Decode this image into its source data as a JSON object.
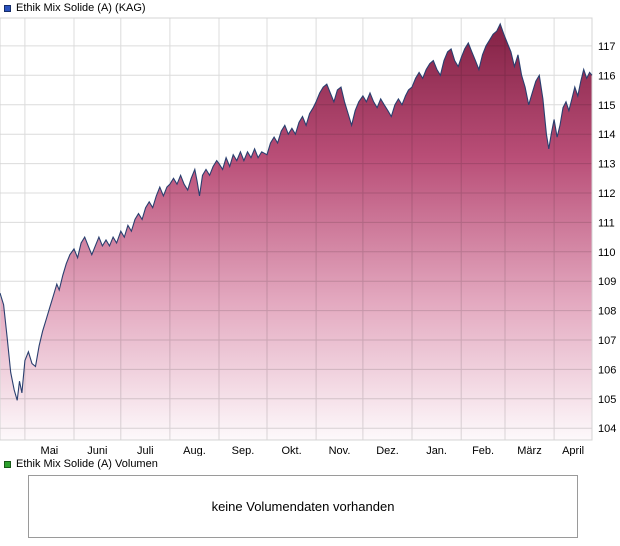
{
  "price_chart": {
    "legend_label": "Ethik Mix Solide (A) (KAG)",
    "legend_color": "#2a52be"
  },
  "volume_section": {
    "legend_label": "Ethik Mix Solide (A) Volumen",
    "legend_color": "#2ca02c",
    "empty_message": "keine Volumendaten vorhanden"
  },
  "chart_data": {
    "type": "area",
    "title": "Ethik Mix Solide (A) (KAG)",
    "xlabel": "",
    "ylabel": "",
    "y_axis_side": "right",
    "grid": true,
    "ylim": [
      103.6,
      117.95
    ],
    "y_ticks": [
      104,
      105,
      106,
      107,
      108,
      109,
      110,
      111,
      112,
      113,
      114,
      115,
      116,
      117
    ],
    "x_tick_labels": [
      "Mai",
      "Juni",
      "Juli",
      "Aug.",
      "Sep.",
      "Okt.",
      "Nov.",
      "Dez.",
      "Jan.",
      "Feb.",
      "März",
      "April"
    ],
    "x_month_boundaries": [
      0.042,
      0.125,
      0.204,
      0.287,
      0.37,
      0.451,
      0.534,
      0.613,
      0.696,
      0.779,
      0.853,
      0.936
    ],
    "line_color": "#2a3f6f",
    "fill_gradient": [
      "#801f42",
      "#b94e77",
      "#e3a8bf",
      "#fdf9fb"
    ],
    "series": [
      {
        "name": "Ethik Mix Solide (A) (KAG)",
        "x_unit": "fraction of plotted time range (ca. Mitte April bis Ende April Folgejahr)",
        "points": [
          [
            0.0,
            108.6
          ],
          [
            0.006,
            108.2
          ],
          [
            0.012,
            107.1
          ],
          [
            0.018,
            105.9
          ],
          [
            0.024,
            105.3
          ],
          [
            0.029,
            104.95
          ],
          [
            0.033,
            105.6
          ],
          [
            0.037,
            105.2
          ],
          [
            0.042,
            106.3
          ],
          [
            0.048,
            106.6
          ],
          [
            0.054,
            106.2
          ],
          [
            0.06,
            106.1
          ],
          [
            0.066,
            106.8
          ],
          [
            0.072,
            107.3
          ],
          [
            0.078,
            107.7
          ],
          [
            0.084,
            108.1
          ],
          [
            0.09,
            108.5
          ],
          [
            0.096,
            108.9
          ],
          [
            0.1,
            108.7
          ],
          [
            0.106,
            109.2
          ],
          [
            0.112,
            109.6
          ],
          [
            0.118,
            109.9
          ],
          [
            0.125,
            110.1
          ],
          [
            0.131,
            109.8
          ],
          [
            0.137,
            110.3
          ],
          [
            0.143,
            110.5
          ],
          [
            0.149,
            110.2
          ],
          [
            0.155,
            109.9
          ],
          [
            0.161,
            110.2
          ],
          [
            0.167,
            110.5
          ],
          [
            0.173,
            110.2
          ],
          [
            0.179,
            110.4
          ],
          [
            0.185,
            110.2
          ],
          [
            0.191,
            110.5
          ],
          [
            0.197,
            110.3
          ],
          [
            0.204,
            110.7
          ],
          [
            0.21,
            110.5
          ],
          [
            0.216,
            110.9
          ],
          [
            0.222,
            110.7
          ],
          [
            0.228,
            111.1
          ],
          [
            0.234,
            111.3
          ],
          [
            0.24,
            111.1
          ],
          [
            0.246,
            111.5
          ],
          [
            0.252,
            111.7
          ],
          [
            0.258,
            111.5
          ],
          [
            0.264,
            111.9
          ],
          [
            0.27,
            112.2
          ],
          [
            0.276,
            111.9
          ],
          [
            0.282,
            112.2
          ],
          [
            0.287,
            112.3
          ],
          [
            0.293,
            112.5
          ],
          [
            0.299,
            112.3
          ],
          [
            0.305,
            112.6
          ],
          [
            0.311,
            112.3
          ],
          [
            0.317,
            112.1
          ],
          [
            0.323,
            112.5
          ],
          [
            0.329,
            112.8
          ],
          [
            0.333,
            112.4
          ],
          [
            0.337,
            111.9
          ],
          [
            0.342,
            112.6
          ],
          [
            0.348,
            112.8
          ],
          [
            0.354,
            112.6
          ],
          [
            0.36,
            112.9
          ],
          [
            0.366,
            113.1
          ],
          [
            0.37,
            113.0
          ],
          [
            0.376,
            112.8
          ],
          [
            0.382,
            113.2
          ],
          [
            0.388,
            112.9
          ],
          [
            0.394,
            113.3
          ],
          [
            0.4,
            113.1
          ],
          [
            0.406,
            113.4
          ],
          [
            0.412,
            113.1
          ],
          [
            0.418,
            113.4
          ],
          [
            0.424,
            113.2
          ],
          [
            0.43,
            113.5
          ],
          [
            0.436,
            113.2
          ],
          [
            0.442,
            113.4
          ],
          [
            0.451,
            113.3
          ],
          [
            0.457,
            113.7
          ],
          [
            0.463,
            113.9
          ],
          [
            0.469,
            113.7
          ],
          [
            0.475,
            114.1
          ],
          [
            0.481,
            114.3
          ],
          [
            0.487,
            114.0
          ],
          [
            0.493,
            114.2
          ],
          [
            0.499,
            114.0
          ],
          [
            0.505,
            114.4
          ],
          [
            0.511,
            114.6
          ],
          [
            0.517,
            114.3
          ],
          [
            0.523,
            114.7
          ],
          [
            0.529,
            114.9
          ],
          [
            0.534,
            115.1
          ],
          [
            0.54,
            115.4
          ],
          [
            0.546,
            115.6
          ],
          [
            0.552,
            115.7
          ],
          [
            0.558,
            115.4
          ],
          [
            0.564,
            115.1
          ],
          [
            0.57,
            115.5
          ],
          [
            0.576,
            115.6
          ],
          [
            0.582,
            115.1
          ],
          [
            0.588,
            114.7
          ],
          [
            0.594,
            114.3
          ],
          [
            0.6,
            114.8
          ],
          [
            0.606,
            115.1
          ],
          [
            0.613,
            115.3
          ],
          [
            0.619,
            115.1
          ],
          [
            0.625,
            115.4
          ],
          [
            0.631,
            115.1
          ],
          [
            0.637,
            114.9
          ],
          [
            0.643,
            115.2
          ],
          [
            0.649,
            115.0
          ],
          [
            0.655,
            114.8
          ],
          [
            0.661,
            114.6
          ],
          [
            0.667,
            115.0
          ],
          [
            0.673,
            115.2
          ],
          [
            0.679,
            115.0
          ],
          [
            0.685,
            115.3
          ],
          [
            0.69,
            115.5
          ],
          [
            0.696,
            115.6
          ],
          [
            0.702,
            115.9
          ],
          [
            0.708,
            116.1
          ],
          [
            0.714,
            115.9
          ],
          [
            0.72,
            116.2
          ],
          [
            0.726,
            116.4
          ],
          [
            0.732,
            116.5
          ],
          [
            0.738,
            116.2
          ],
          [
            0.744,
            116.0
          ],
          [
            0.75,
            116.5
          ],
          [
            0.756,
            116.8
          ],
          [
            0.762,
            116.9
          ],
          [
            0.768,
            116.5
          ],
          [
            0.774,
            116.3
          ],
          [
            0.779,
            116.6
          ],
          [
            0.785,
            116.9
          ],
          [
            0.791,
            117.1
          ],
          [
            0.797,
            116.8
          ],
          [
            0.803,
            116.5
          ],
          [
            0.809,
            116.2
          ],
          [
            0.815,
            116.7
          ],
          [
            0.821,
            117.0
          ],
          [
            0.827,
            117.2
          ],
          [
            0.833,
            117.4
          ],
          [
            0.839,
            117.5
          ],
          [
            0.845,
            117.75
          ],
          [
            0.851,
            117.4
          ],
          [
            0.857,
            117.1
          ],
          [
            0.863,
            116.8
          ],
          [
            0.869,
            116.3
          ],
          [
            0.875,
            116.7
          ],
          [
            0.881,
            116.0
          ],
          [
            0.887,
            115.6
          ],
          [
            0.893,
            115.0
          ],
          [
            0.899,
            115.4
          ],
          [
            0.905,
            115.8
          ],
          [
            0.911,
            116.0
          ],
          [
            0.917,
            115.2
          ],
          [
            0.923,
            114.0
          ],
          [
            0.927,
            113.5
          ],
          [
            0.931,
            114.0
          ],
          [
            0.936,
            114.5
          ],
          [
            0.941,
            113.9
          ],
          [
            0.946,
            114.3
          ],
          [
            0.951,
            114.9
          ],
          [
            0.956,
            115.1
          ],
          [
            0.961,
            114.8
          ],
          [
            0.966,
            115.2
          ],
          [
            0.971,
            115.6
          ],
          [
            0.976,
            115.3
          ],
          [
            0.981,
            115.8
          ],
          [
            0.986,
            116.2
          ],
          [
            0.991,
            115.9
          ],
          [
            0.996,
            116.1
          ],
          [
            1.0,
            116.0
          ]
        ]
      }
    ]
  }
}
